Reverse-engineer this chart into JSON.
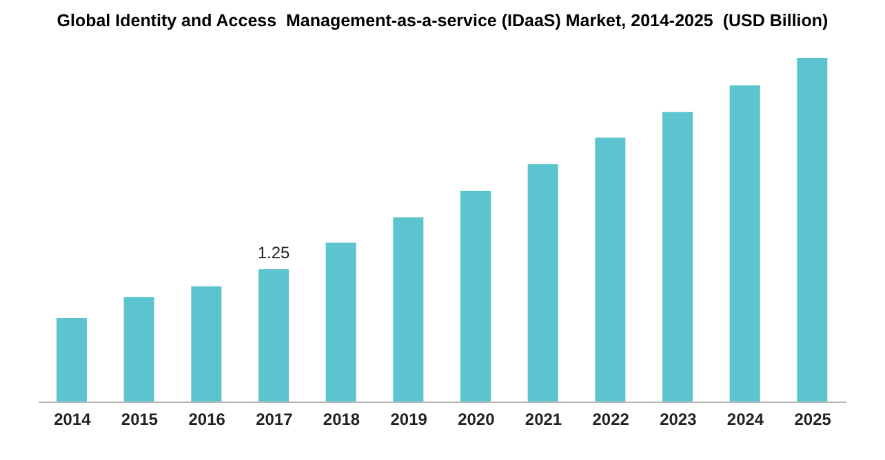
{
  "chart_data": {
    "type": "bar",
    "title": "Global Identity and Access  Management-as-a-service (IDaaS) Market, 2014-2025  (USD Billion)",
    "categories": [
      "2014",
      "2015",
      "2016",
      "2017",
      "2018",
      "2019",
      "2020",
      "2021",
      "2022",
      "2023",
      "2024",
      "2025"
    ],
    "values": [
      0.79,
      0.99,
      1.09,
      1.25,
      1.5,
      1.74,
      1.99,
      2.24,
      2.49,
      2.73,
      2.98,
      3.24
    ],
    "value_labels": [
      null,
      null,
      null,
      "1.25",
      null,
      null,
      null,
      null,
      null,
      null,
      null,
      null
    ],
    "color": "#5bc4cf"
  }
}
